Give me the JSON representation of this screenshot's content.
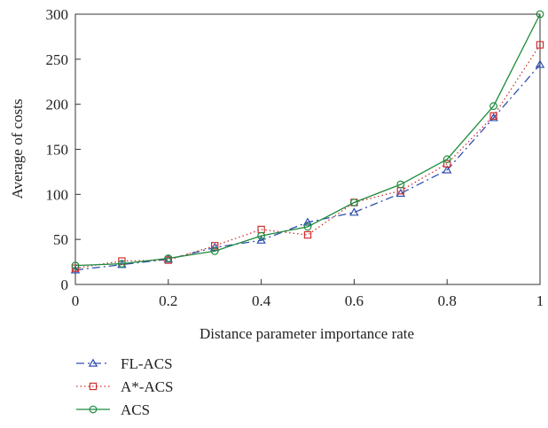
{
  "chart_data": {
    "type": "line",
    "title": "",
    "xlabel": "Distance parameter importance rate",
    "ylabel": "Average of costs",
    "xlim": [
      0,
      1
    ],
    "ylim": [
      0,
      300
    ],
    "xticks": [
      0,
      0.2,
      0.4,
      0.6,
      0.8,
      1
    ],
    "xtick_labels": [
      "0",
      "0.2",
      "0.4",
      "0.6",
      "0.8",
      "1"
    ],
    "yticks": [
      0,
      50,
      100,
      150,
      200,
      250,
      300
    ],
    "ytick_labels": [
      "0",
      "50",
      "100",
      "150",
      "200",
      "250",
      "300"
    ],
    "grid": false,
    "legend_position": "below",
    "x": [
      0,
      0.1,
      0.2,
      0.3,
      0.4,
      0.5,
      0.6,
      0.7,
      0.8,
      0.9,
      1
    ],
    "series": [
      {
        "name": "FL-ACS",
        "values": [
          16,
          22,
          28,
          41,
          49,
          69,
          80,
          101,
          127,
          185,
          244
        ],
        "color": "#2f4fb0",
        "marker": "triangle",
        "dash": "dashdot"
      },
      {
        "name": "A*-ACS",
        "values": [
          18,
          26,
          27,
          43,
          61,
          55,
          91,
          104,
          134,
          187,
          266
        ],
        "color": "#d03030",
        "marker": "square",
        "dash": "dotted"
      },
      {
        "name": "ACS",
        "values": [
          21,
          23,
          29,
          37,
          54,
          64,
          91,
          111,
          139,
          198,
          300
        ],
        "color": "#1e8a3c",
        "marker": "circle",
        "dash": "solid"
      }
    ]
  }
}
